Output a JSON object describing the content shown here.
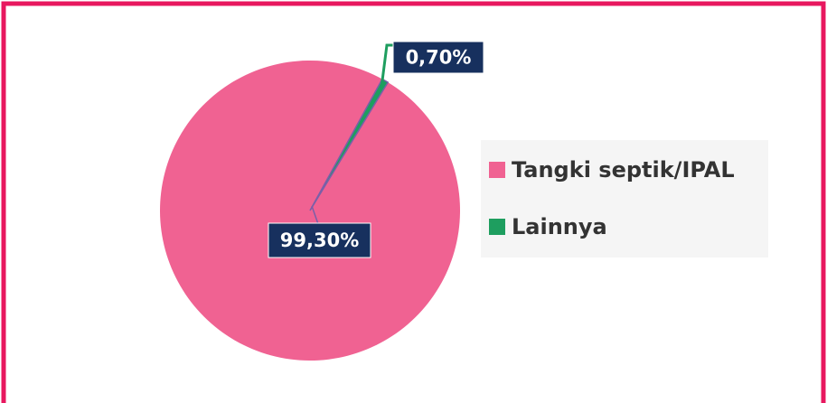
{
  "chart_data": {
    "type": "pie",
    "categories": [
      "Tangki septik/IPAL",
      "Lainnya"
    ],
    "values": [
      99.3,
      0.7
    ],
    "value_labels": [
      "99,30%",
      "0,70%"
    ],
    "colors": [
      "#f06292",
      "#1e9e5f"
    ],
    "legend": "right"
  }
}
